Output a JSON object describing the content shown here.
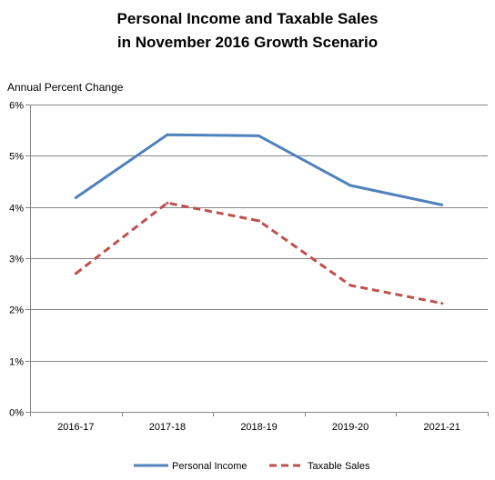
{
  "chart_data": {
    "type": "line",
    "title": [
      "Personal Income and Taxable Sales",
      "in November 2016 Growth Scenario"
    ],
    "ylabel": "Annual Percent Change",
    "xlabel": "",
    "categories": [
      "2016-17",
      "2017-18",
      "2018-19",
      "2019-20",
      "2021-21"
    ],
    "ylim": [
      0,
      6
    ],
    "yticks": [
      {
        "value": 0,
        "label": "0%"
      },
      {
        "value": 1,
        "label": "1%"
      },
      {
        "value": 2,
        "label": "2%"
      },
      {
        "value": 3,
        "label": "3%"
      },
      {
        "value": 4,
        "label": "4%"
      },
      {
        "value": 5,
        "label": "5%"
      },
      {
        "value": 6,
        "label": "6%"
      }
    ],
    "grid": "horizontal",
    "legend_position": "bottom",
    "series": [
      {
        "name": "Personal Income",
        "color": "#4F81BD",
        "style": "solid",
        "values": [
          4.18,
          5.41,
          5.39,
          4.42,
          4.04
        ]
      },
      {
        "name": "Taxable Sales",
        "color": "#C0504D",
        "style": "dashed",
        "values": [
          2.7,
          4.08,
          3.73,
          2.47,
          2.12
        ]
      }
    ]
  }
}
